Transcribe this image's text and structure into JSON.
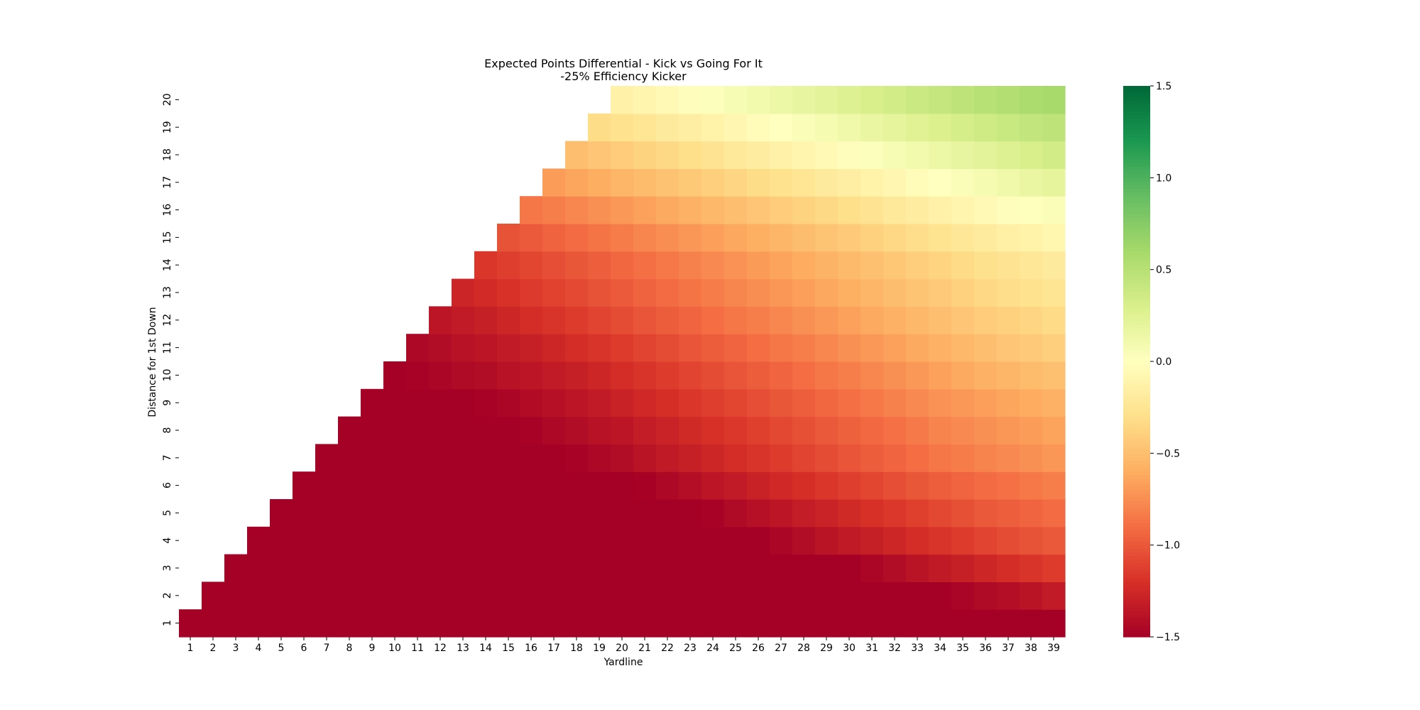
{
  "chart_data": {
    "type": "heatmap",
    "title": "Expected Points Differential - Kick vs Going For It",
    "subtitle": "-25% Efficiency Kicker",
    "xlabel": "Yardline",
    "ylabel": "Distance for 1st Down",
    "x": [
      1,
      2,
      3,
      4,
      5,
      6,
      7,
      8,
      9,
      10,
      11,
      12,
      13,
      14,
      15,
      16,
      17,
      18,
      19,
      20,
      21,
      22,
      23,
      24,
      25,
      26,
      27,
      28,
      29,
      30,
      31,
      32,
      33,
      34,
      35,
      36,
      37,
      38,
      39
    ],
    "y": [
      1,
      2,
      3,
      4,
      5,
      6,
      7,
      8,
      9,
      10,
      11,
      12,
      13,
      14,
      15,
      16,
      17,
      18,
      19,
      20
    ],
    "mask_rule": "cells with distance greater than yardline are blank",
    "colormap": "RdYlGn",
    "clim": [
      -1.5,
      1.5
    ],
    "colorbar_ticks": [
      -1.5,
      -1.0,
      -0.5,
      0.0,
      0.5,
      1.0,
      1.5
    ],
    "colorbar_tick_labels": [
      "−1.5",
      "−1.0",
      "−0.5",
      "0.0",
      "0.5",
      "1.0",
      "1.5"
    ],
    "values": [
      [
        -1.5,
        -1.5,
        -1.5,
        -1.5,
        -1.5,
        -1.5,
        -1.5,
        -1.5,
        -1.5,
        -1.5,
        -1.5,
        -1.5,
        -1.5,
        -1.5,
        -1.5,
        -1.5,
        -1.5,
        -1.5,
        -1.5,
        -1.5,
        -1.5,
        -1.5,
        -1.5,
        -1.5,
        -1.5,
        -1.5,
        -1.5,
        -1.5,
        -1.5,
        -1.5,
        -1.5,
        -1.5,
        -1.5,
        -1.5,
        -1.5,
        -1.5,
        -1.5,
        -1.5,
        -1.5
      ],
      [
        null,
        -1.5,
        -1.5,
        -1.5,
        -1.5,
        -1.5,
        -1.5,
        -1.5,
        -1.5,
        -1.5,
        -1.5,
        -1.5,
        -1.5,
        -1.5,
        -1.5,
        -1.5,
        -1.5,
        -1.5,
        -1.5,
        -1.5,
        -1.5,
        -1.5,
        -1.5,
        -1.5,
        -1.5,
        -1.5,
        -1.5,
        -1.5,
        -1.5,
        -1.5,
        -1.5,
        -1.5,
        -1.5,
        -1.5,
        -1.47,
        -1.44,
        -1.41,
        -1.38,
        -1.33
      ],
      [
        null,
        null,
        -1.5,
        -1.5,
        -1.5,
        -1.5,
        -1.5,
        -1.5,
        -1.5,
        -1.5,
        -1.5,
        -1.5,
        -1.5,
        -1.5,
        -1.5,
        -1.5,
        -1.5,
        -1.5,
        -1.5,
        -1.5,
        -1.5,
        -1.5,
        -1.5,
        -1.5,
        -1.5,
        -1.5,
        -1.5,
        -1.5,
        -1.5,
        -1.5,
        -1.46,
        -1.42,
        -1.38,
        -1.34,
        -1.3,
        -1.26,
        -1.22,
        -1.18,
        -1.14
      ],
      [
        null,
        null,
        null,
        -1.5,
        -1.5,
        -1.5,
        -1.5,
        -1.5,
        -1.5,
        -1.5,
        -1.5,
        -1.5,
        -1.5,
        -1.5,
        -1.5,
        -1.5,
        -1.5,
        -1.5,
        -1.5,
        -1.5,
        -1.5,
        -1.5,
        -1.5,
        -1.5,
        -1.5,
        -1.5,
        -1.46,
        -1.42,
        -1.38,
        -1.34,
        -1.3,
        -1.26,
        -1.22,
        -1.18,
        -1.14,
        -1.1,
        -1.06,
        -1.03,
        -1.0
      ],
      [
        null,
        null,
        null,
        null,
        -1.5,
        -1.5,
        -1.5,
        -1.5,
        -1.5,
        -1.5,
        -1.5,
        -1.5,
        -1.5,
        -1.5,
        -1.5,
        -1.5,
        -1.5,
        -1.5,
        -1.5,
        -1.5,
        -1.5,
        -1.5,
        -1.5,
        -1.48,
        -1.44,
        -1.4,
        -1.36,
        -1.32,
        -1.28,
        -1.24,
        -1.2,
        -1.16,
        -1.12,
        -1.08,
        -1.04,
        -1.0,
        -0.97,
        -0.94,
        -0.91
      ],
      [
        null,
        null,
        null,
        null,
        null,
        -1.5,
        -1.5,
        -1.5,
        -1.5,
        -1.5,
        -1.5,
        -1.5,
        -1.5,
        -1.5,
        -1.5,
        -1.5,
        -1.5,
        -1.5,
        -1.5,
        -1.5,
        -1.49,
        -1.45,
        -1.41,
        -1.37,
        -1.33,
        -1.29,
        -1.25,
        -1.21,
        -1.17,
        -1.13,
        -1.09,
        -1.05,
        -1.01,
        -0.97,
        -0.94,
        -0.91,
        -0.88,
        -0.85,
        -0.82
      ],
      [
        null,
        null,
        null,
        null,
        null,
        null,
        -1.5,
        -1.5,
        -1.5,
        -1.5,
        -1.5,
        -1.5,
        -1.5,
        -1.5,
        -1.5,
        -1.5,
        -1.5,
        -1.48,
        -1.45,
        -1.42,
        -1.38,
        -1.34,
        -1.3,
        -1.26,
        -1.22,
        -1.18,
        -1.14,
        -1.1,
        -1.06,
        -1.02,
        -0.98,
        -0.94,
        -0.9,
        -0.86,
        -0.83,
        -0.8,
        -0.77,
        -0.74,
        -0.71
      ],
      [
        null,
        null,
        null,
        null,
        null,
        null,
        null,
        -1.5,
        -1.5,
        -1.5,
        -1.5,
        -1.5,
        -1.5,
        -1.5,
        -1.5,
        -1.48,
        -1.45,
        -1.42,
        -1.39,
        -1.36,
        -1.32,
        -1.28,
        -1.24,
        -1.2,
        -1.16,
        -1.12,
        -1.08,
        -1.04,
        -1.0,
        -0.96,
        -0.92,
        -0.88,
        -0.84,
        -0.8,
        -0.77,
        -0.74,
        -0.71,
        -0.68,
        -0.65
      ],
      [
        null,
        null,
        null,
        null,
        null,
        null,
        null,
        null,
        -1.5,
        -1.5,
        -1.5,
        -1.5,
        -1.5,
        -1.48,
        -1.46,
        -1.43,
        -1.4,
        -1.37,
        -1.33,
        -1.29,
        -1.25,
        -1.21,
        -1.17,
        -1.13,
        -1.09,
        -1.05,
        -1.01,
        -0.97,
        -0.93,
        -0.89,
        -0.85,
        -0.81,
        -0.77,
        -0.73,
        -0.7,
        -0.67,
        -0.64,
        -0.61,
        -0.58
      ],
      [
        null,
        null,
        null,
        null,
        null,
        null,
        null,
        null,
        null,
        -1.5,
        -1.48,
        -1.46,
        -1.44,
        -1.42,
        -1.39,
        -1.36,
        -1.33,
        -1.3,
        -1.26,
        -1.22,
        -1.18,
        -1.14,
        -1.1,
        -1.06,
        -1.02,
        -0.98,
        -0.94,
        -0.9,
        -0.86,
        -0.82,
        -0.78,
        -0.74,
        -0.7,
        -0.66,
        -0.62,
        -0.58,
        -0.55,
        -0.52,
        -0.49
      ],
      [
        null,
        null,
        null,
        null,
        null,
        null,
        null,
        null,
        null,
        null,
        -1.45,
        -1.42,
        -1.39,
        -1.36,
        -1.33,
        -1.3,
        -1.26,
        -1.22,
        -1.18,
        -1.14,
        -1.1,
        -1.06,
        -1.02,
        -0.98,
        -0.94,
        -0.9,
        -0.86,
        -0.82,
        -0.78,
        -0.74,
        -0.7,
        -0.66,
        -0.62,
        -0.58,
        -0.54,
        -0.5,
        -0.46,
        -0.43,
        -0.4
      ],
      [
        null,
        null,
        null,
        null,
        null,
        null,
        null,
        null,
        null,
        null,
        null,
        -1.36,
        -1.33,
        -1.3,
        -1.26,
        -1.22,
        -1.18,
        -1.14,
        -1.1,
        -1.06,
        -1.02,
        -0.98,
        -0.94,
        -0.9,
        -0.86,
        -0.82,
        -0.78,
        -0.74,
        -0.7,
        -0.66,
        -0.62,
        -0.58,
        -0.54,
        -0.5,
        -0.46,
        -0.42,
        -0.39,
        -0.36,
        -0.33
      ],
      [
        null,
        null,
        null,
        null,
        null,
        null,
        null,
        null,
        null,
        null,
        null,
        null,
        -1.27,
        -1.23,
        -1.19,
        -1.15,
        -1.11,
        -1.07,
        -1.03,
        -0.99,
        -0.95,
        -0.91,
        -0.87,
        -0.83,
        -0.79,
        -0.75,
        -0.71,
        -0.67,
        -0.63,
        -0.59,
        -0.55,
        -0.51,
        -0.47,
        -0.43,
        -0.39,
        -0.35,
        -0.31,
        -0.28,
        -0.25
      ],
      [
        null,
        null,
        null,
        null,
        null,
        null,
        null,
        null,
        null,
        null,
        null,
        null,
        null,
        -1.17,
        -1.13,
        -1.09,
        -1.05,
        -1.01,
        -0.97,
        -0.93,
        -0.89,
        -0.85,
        -0.81,
        -0.77,
        -0.73,
        -0.69,
        -0.65,
        -0.61,
        -0.57,
        -0.53,
        -0.49,
        -0.45,
        -0.41,
        -0.37,
        -0.33,
        -0.29,
        -0.26,
        -0.23,
        -0.2
      ],
      [
        null,
        null,
        null,
        null,
        null,
        null,
        null,
        null,
        null,
        null,
        null,
        null,
        null,
        null,
        -1.03,
        -0.99,
        -0.95,
        -0.91,
        -0.87,
        -0.83,
        -0.79,
        -0.75,
        -0.71,
        -0.67,
        -0.63,
        -0.59,
        -0.55,
        -0.51,
        -0.47,
        -0.43,
        -0.39,
        -0.35,
        -0.31,
        -0.27,
        -0.23,
        -0.19,
        -0.15,
        -0.12,
        -0.09
      ],
      [
        null,
        null,
        null,
        null,
        null,
        null,
        null,
        null,
        null,
        null,
        null,
        null,
        null,
        null,
        null,
        -0.86,
        -0.82,
        -0.78,
        -0.74,
        -0.7,
        -0.66,
        -0.62,
        -0.58,
        -0.54,
        -0.5,
        -0.46,
        -0.42,
        -0.38,
        -0.34,
        -0.3,
        -0.26,
        -0.22,
        -0.18,
        -0.14,
        -0.1,
        -0.06,
        -0.02,
        0.01,
        0.04
      ],
      [
        null,
        null,
        null,
        null,
        null,
        null,
        null,
        null,
        null,
        null,
        null,
        null,
        null,
        null,
        null,
        null,
        -0.68,
        -0.64,
        -0.6,
        -0.56,
        -0.52,
        -0.48,
        -0.44,
        -0.4,
        -0.36,
        -0.32,
        -0.28,
        -0.24,
        -0.2,
        -0.16,
        -0.12,
        -0.08,
        -0.04,
        0.0,
        0.04,
        0.08,
        0.12,
        0.16,
        0.2
      ],
      [
        null,
        null,
        null,
        null,
        null,
        null,
        null,
        null,
        null,
        null,
        null,
        null,
        null,
        null,
        null,
        null,
        null,
        -0.5,
        -0.46,
        -0.42,
        -0.38,
        -0.34,
        -0.3,
        -0.26,
        -0.22,
        -0.18,
        -0.14,
        -0.1,
        -0.06,
        -0.02,
        0.02,
        0.06,
        0.1,
        0.14,
        0.18,
        0.22,
        0.26,
        0.3,
        0.34
      ],
      [
        null,
        null,
        null,
        null,
        null,
        null,
        null,
        null,
        null,
        null,
        null,
        null,
        null,
        null,
        null,
        null,
        null,
        null,
        -0.32,
        -0.28,
        -0.24,
        -0.2,
        -0.16,
        -0.12,
        -0.08,
        -0.04,
        0.0,
        0.04,
        0.08,
        0.12,
        0.16,
        0.2,
        0.24,
        0.28,
        0.32,
        0.36,
        0.4,
        0.43,
        0.46
      ],
      [
        null,
        null,
        null,
        null,
        null,
        null,
        null,
        null,
        null,
        null,
        null,
        null,
        null,
        null,
        null,
        null,
        null,
        null,
        null,
        -0.14,
        -0.1,
        -0.06,
        -0.02,
        0.02,
        0.06,
        0.1,
        0.14,
        0.18,
        0.22,
        0.26,
        0.3,
        0.34,
        0.38,
        0.42,
        0.46,
        0.5,
        0.53,
        0.56,
        0.59
      ]
    ]
  }
}
